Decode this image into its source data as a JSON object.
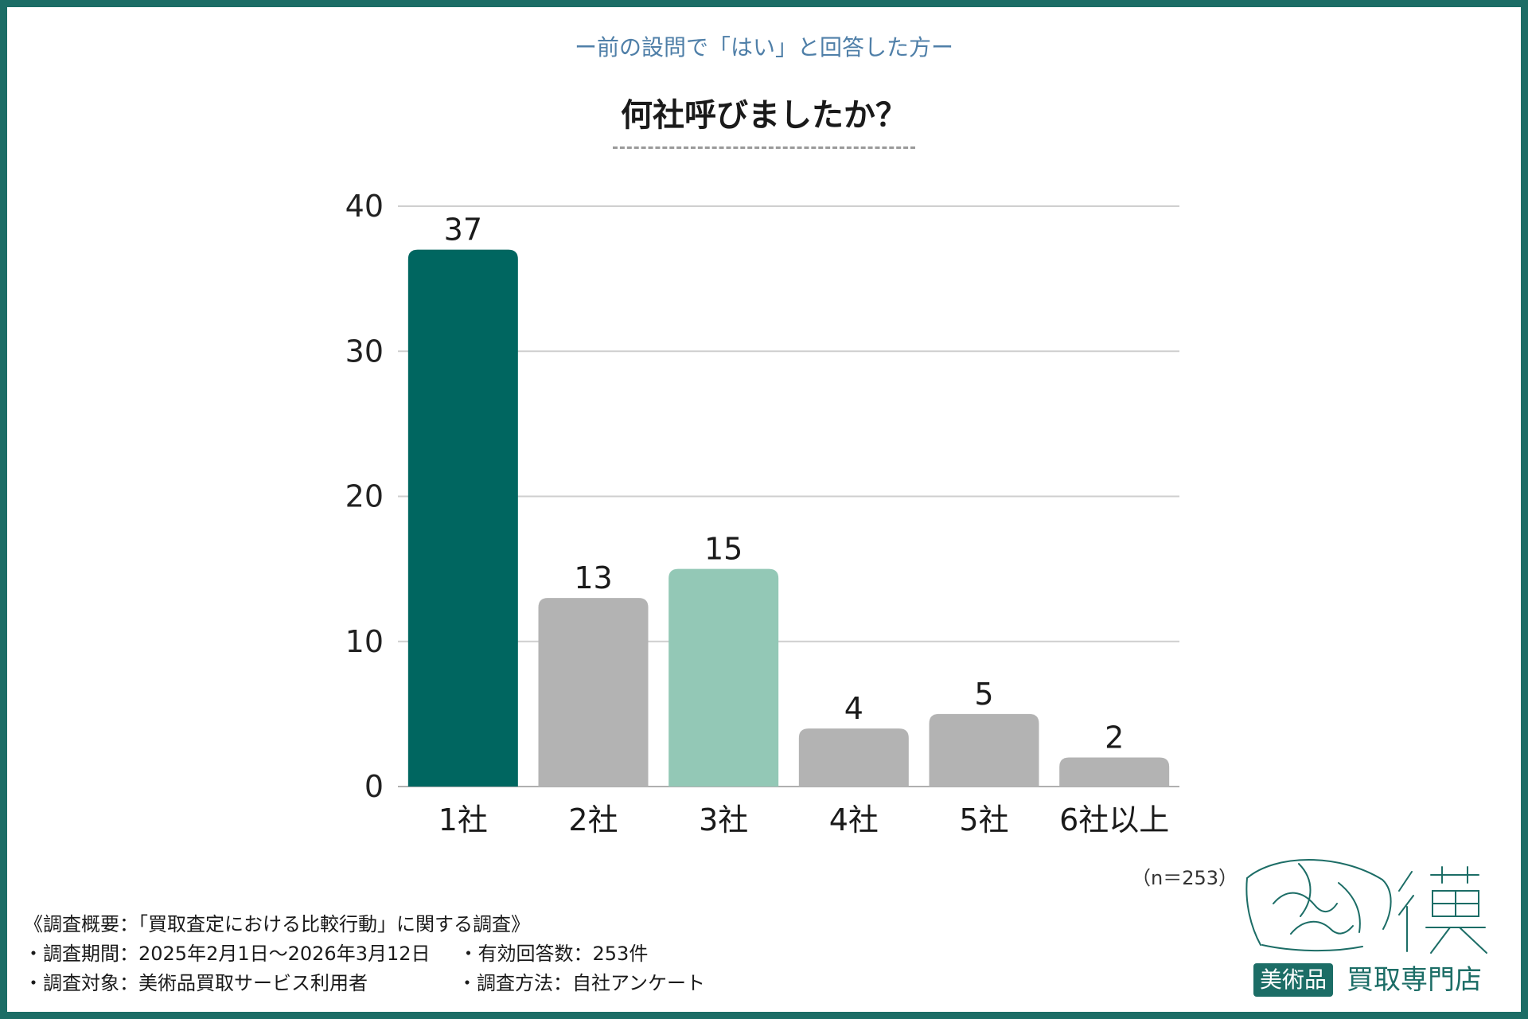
{
  "header": {
    "subtitle": "ー前の設問で「はい」と回答した方ー",
    "title": "何社呼びましたか？"
  },
  "chart_data": {
    "type": "bar",
    "categories": [
      "1社",
      "2社",
      "3社",
      "4社",
      "5社",
      "6社以上"
    ],
    "values": [
      37,
      13,
      15,
      4,
      5,
      2
    ],
    "colors": [
      "#006660",
      "#b3b3b3",
      "#93c8b6",
      "#b3b3b3",
      "#b3b3b3",
      "#b3b3b3"
    ],
    "ylim": [
      0,
      40
    ],
    "yticks": [
      0,
      10,
      20,
      30,
      40
    ],
    "grid": true,
    "title": "何社呼びましたか？",
    "xlabel": "",
    "ylabel": ""
  },
  "sample_size": "（n＝253）",
  "survey": {
    "overview": "《調査概要：「買取査定における比較行動」に関する調査》",
    "period": "・調査期間：2025年2月1日～2026年3月12日",
    "responses": "・有効回答数：253件",
    "target": "・調査対象：美術品買取サービス利用者",
    "method": "・調査方法：自社アンケート"
  },
  "logo": {
    "badge": "美術品",
    "text": "買取専門店",
    "icon": "anteater-icon",
    "color": "#1c6d66"
  }
}
